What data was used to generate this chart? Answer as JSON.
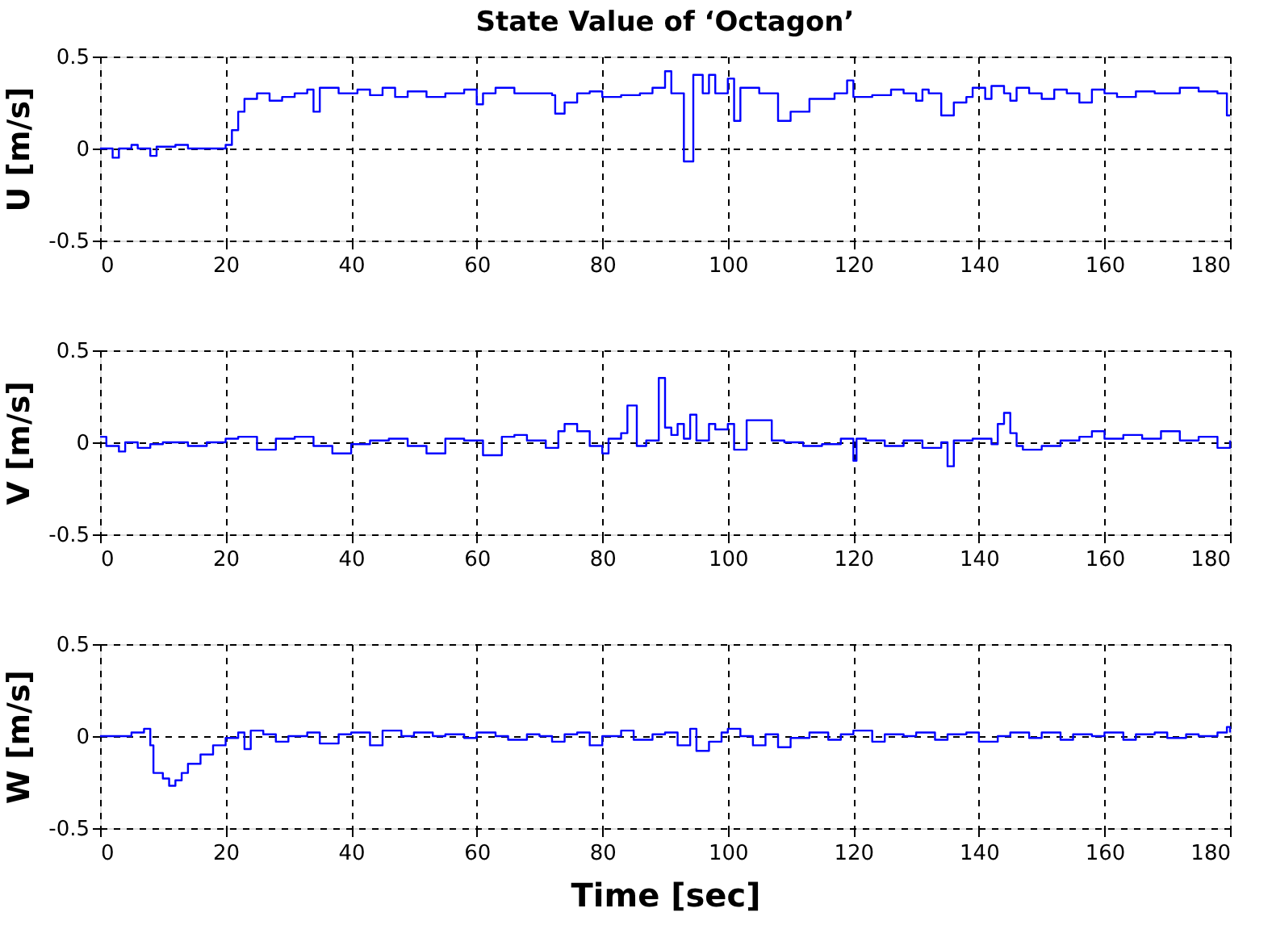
{
  "chart_data": [
    {
      "type": "step",
      "title": "State Value of ‘Octagon’",
      "ylabel": "U [m/s]",
      "xlim": [
        0,
        180
      ],
      "xticks": [
        0,
        20,
        40,
        60,
        80,
        100,
        120,
        140,
        160,
        180
      ],
      "ylim": [
        -0.5,
        0.5
      ],
      "yticks": [
        -0.5,
        0,
        0.5
      ],
      "grid": true,
      "marker": "none",
      "line_style": "solid",
      "x": [
        0,
        2,
        3,
        5,
        6,
        8,
        9,
        12,
        14,
        20,
        21,
        22,
        23,
        25,
        27,
        29,
        31,
        33,
        34,
        35,
        38,
        41,
        43,
        45,
        47,
        49,
        52,
        55,
        58,
        60,
        61,
        63,
        66,
        69,
        72,
        72.5,
        74,
        76,
        78,
        80,
        83,
        86,
        88,
        90,
        91,
        93,
        94.5,
        96,
        97,
        98,
        100,
        101,
        102,
        105,
        108,
        110,
        113,
        117,
        119,
        120,
        123,
        126,
        128,
        130,
        131,
        132,
        134,
        136,
        138,
        139,
        141,
        142,
        144,
        145,
        146,
        148,
        150,
        152,
        154,
        156,
        158,
        160,
        162,
        165,
        168,
        172,
        175,
        178,
        179.5,
        180
      ],
      "series": [
        {
          "color": "#0000ff",
          "values": [
            0,
            -0.05,
            0,
            0.02,
            0,
            -0.04,
            0.01,
            0.02,
            0,
            0.02,
            0.1,
            0.2,
            0.27,
            0.3,
            0.26,
            0.28,
            0.3,
            0.32,
            0.2,
            0.33,
            0.3,
            0.32,
            0.29,
            0.33,
            0.28,
            0.31,
            0.28,
            0.3,
            0.32,
            0.24,
            0.3,
            0.33,
            0.3,
            0.3,
            0.29,
            0.19,
            0.25,
            0.3,
            0.31,
            0.28,
            0.29,
            0.3,
            0.33,
            0.42,
            0.3,
            -0.07,
            0.4,
            0.3,
            0.4,
            0.3,
            0.38,
            0.15,
            0.33,
            0.3,
            0.15,
            0.2,
            0.27,
            0.3,
            0.37,
            0.28,
            0.29,
            0.32,
            0.3,
            0.26,
            0.32,
            0.3,
            0.18,
            0.25,
            0.28,
            0.33,
            0.27,
            0.34,
            0.3,
            0.26,
            0.33,
            0.3,
            0.27,
            0.32,
            0.3,
            0.25,
            0.32,
            0.3,
            0.28,
            0.31,
            0.3,
            0.33,
            0.31,
            0.3,
            0.18,
            0.18
          ]
        }
      ]
    },
    {
      "type": "step",
      "ylabel": "V [m/s]",
      "xlim": [
        0,
        180
      ],
      "xticks": [
        0,
        20,
        40,
        60,
        80,
        100,
        120,
        140,
        160,
        180
      ],
      "ylim": [
        -0.5,
        0.5
      ],
      "yticks": [
        -0.5,
        0,
        0.5
      ],
      "grid": true,
      "marker": "none",
      "line_style": "solid",
      "x": [
        0,
        1,
        3,
        4,
        6,
        8,
        10,
        14,
        17,
        20,
        22,
        25,
        28,
        31,
        34,
        37,
        40,
        43,
        46,
        49,
        52,
        55,
        58,
        61,
        64,
        66,
        68,
        71,
        73,
        74,
        76,
        78,
        80,
        81,
        83,
        84,
        85.5,
        87,
        89,
        90,
        91,
        92,
        93,
        94,
        95,
        97,
        98,
        100,
        101,
        103,
        107,
        109,
        112,
        115,
        118,
        120,
        120.5,
        122,
        125,
        128,
        131,
        134,
        135,
        136,
        139,
        142,
        143,
        144,
        145,
        146,
        147,
        150,
        153,
        156,
        158,
        160,
        163,
        166,
        169,
        172,
        175,
        178,
        180
      ],
      "series": [
        {
          "color": "#0000ff",
          "values": [
            0.03,
            -0.02,
            -0.05,
            0,
            -0.03,
            -0.01,
            0,
            -0.02,
            0,
            0.02,
            0.03,
            -0.04,
            0.02,
            0.03,
            -0.02,
            -0.06,
            -0.01,
            0.01,
            0.02,
            -0.02,
            -0.06,
            0.02,
            0.01,
            -0.07,
            0.03,
            0.04,
            0.01,
            -0.03,
            0.06,
            0.1,
            0.06,
            -0.02,
            -0.06,
            0.02,
            0.05,
            0.2,
            -0.02,
            0.01,
            0.35,
            0.08,
            0.04,
            0.1,
            0.02,
            0.15,
            0.01,
            0.1,
            0.07,
            0.1,
            -0.04,
            0.12,
            0.01,
            0,
            -0.02,
            -0.01,
            0.02,
            -0.1,
            0.02,
            0.01,
            -0.02,
            0.01,
            -0.03,
            0,
            -0.13,
            0.01,
            0.02,
            -0.01,
            0.1,
            0.16,
            0.05,
            -0.02,
            -0.04,
            -0.02,
            0.01,
            0.03,
            0.06,
            0.02,
            0.04,
            0.02,
            0.06,
            0.01,
            0.03,
            -0.03,
            0.01
          ]
        }
      ]
    },
    {
      "type": "step",
      "ylabel": "W [m/s]",
      "xlabel": "Time [sec]",
      "xlim": [
        0,
        180
      ],
      "xticks": [
        0,
        20,
        40,
        60,
        80,
        100,
        120,
        140,
        160,
        180
      ],
      "ylim": [
        -0.5,
        0.5
      ],
      "yticks": [
        -0.5,
        0,
        0.5
      ],
      "grid": true,
      "marker": "none",
      "line_style": "solid",
      "x": [
        0,
        5,
        7,
        8,
        8.5,
        10,
        11,
        12,
        13,
        14,
        16,
        18,
        20,
        22,
        23,
        24,
        26,
        28,
        30,
        33,
        35,
        38,
        40,
        43,
        45,
        48,
        50,
        53,
        55,
        58,
        60,
        63,
        65,
        68,
        70,
        72,
        74,
        76,
        78,
        80,
        83,
        85,
        88,
        90,
        92,
        94,
        95,
        97,
        99,
        100,
        102,
        104,
        106,
        108,
        110,
        113,
        116,
        118,
        120,
        123,
        125,
        128,
        130,
        133,
        135,
        138,
        140,
        143,
        145,
        148,
        150,
        153,
        155,
        158,
        160,
        163,
        165,
        168,
        170,
        173,
        175,
        178,
        179.5,
        180
      ],
      "series": [
        {
          "color": "#0000ff",
          "values": [
            0,
            0.02,
            0.04,
            -0.05,
            -0.2,
            -0.23,
            -0.27,
            -0.24,
            -0.2,
            -0.15,
            -0.1,
            -0.05,
            -0.01,
            0.02,
            -0.07,
            0.03,
            0.01,
            -0.03,
            0,
            0.02,
            -0.04,
            0.01,
            0.02,
            -0.05,
            0.03,
            0,
            0.02,
            0,
            0.01,
            -0.01,
            0.02,
            0,
            -0.02,
            0.01,
            0,
            -0.03,
            0.01,
            0.02,
            -0.05,
            0,
            0.03,
            -0.02,
            0.01,
            0.02,
            -0.05,
            0.04,
            -0.08,
            -0.03,
            0.02,
            0.04,
            0,
            -0.05,
            0.01,
            -0.06,
            -0.01,
            0.02,
            -0.02,
            0.01,
            0.03,
            -0.03,
            0.01,
            0,
            0.02,
            -0.02,
            0.01,
            0.02,
            -0.03,
            0,
            0.02,
            -0.01,
            0.02,
            -0.02,
            0.01,
            0,
            0.02,
            -0.02,
            0.01,
            0.02,
            -0.01,
            0.01,
            0,
            0.02,
            0.05,
            0.02
          ]
        }
      ]
    }
  ]
}
